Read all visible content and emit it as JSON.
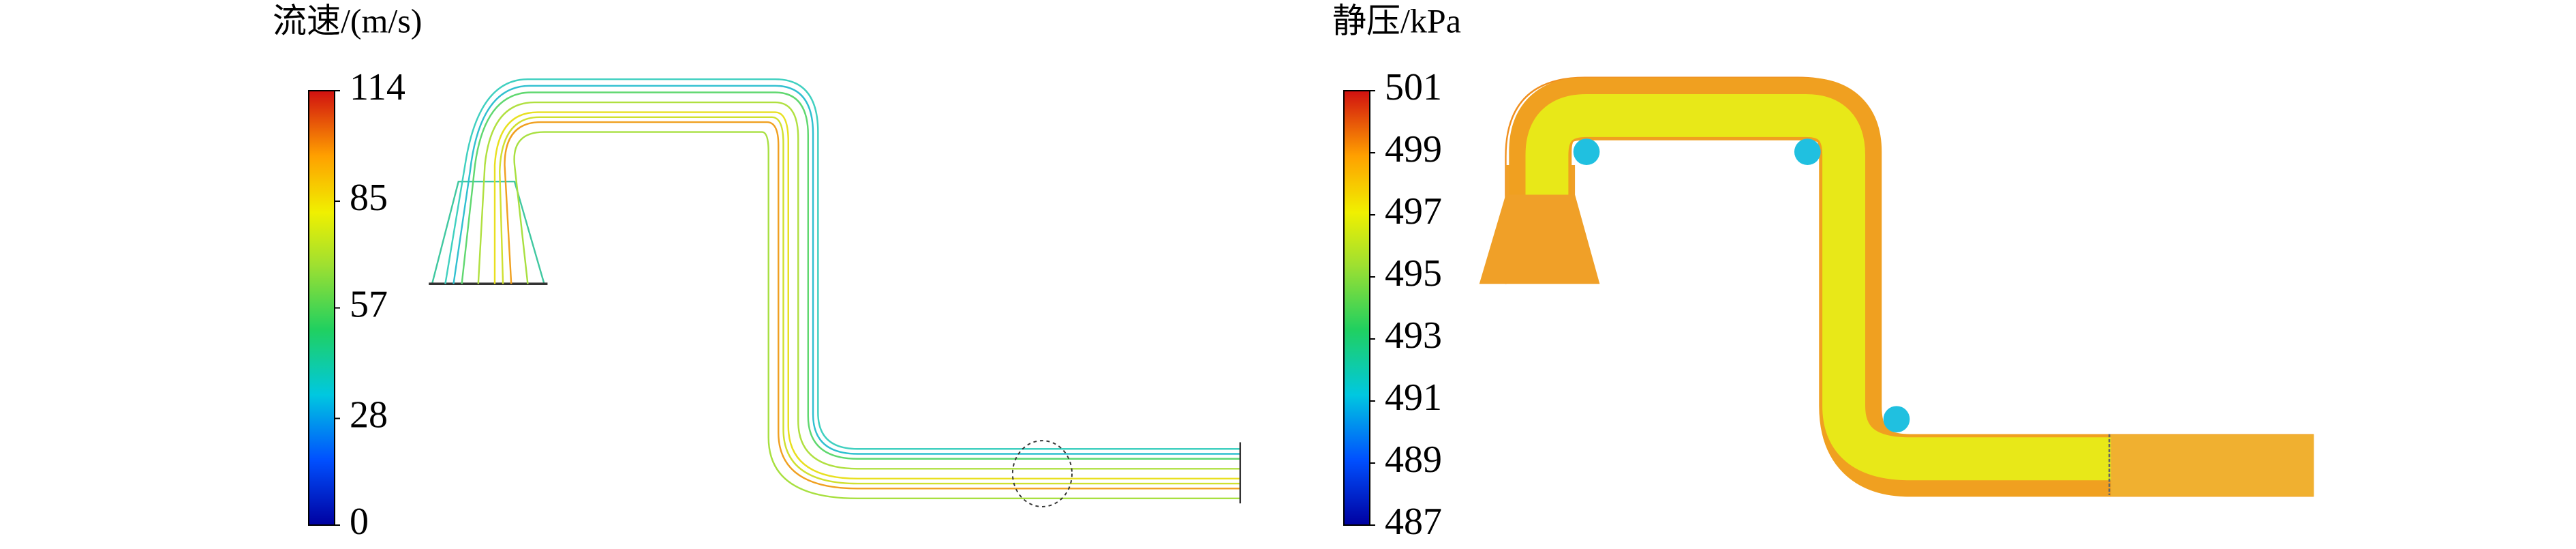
{
  "panels": [
    {
      "title": "流速/(m/s)",
      "colorbar": {
        "lim": [
          0,
          114
        ],
        "ticks": [
          0,
          28,
          57,
          85,
          114
        ]
      }
    },
    {
      "title": "静压/kPa",
      "colorbar": {
        "lim": [
          487,
          501
        ],
        "ticks": [
          487,
          489,
          491,
          493,
          495,
          497,
          499,
          501
        ]
      }
    }
  ]
}
